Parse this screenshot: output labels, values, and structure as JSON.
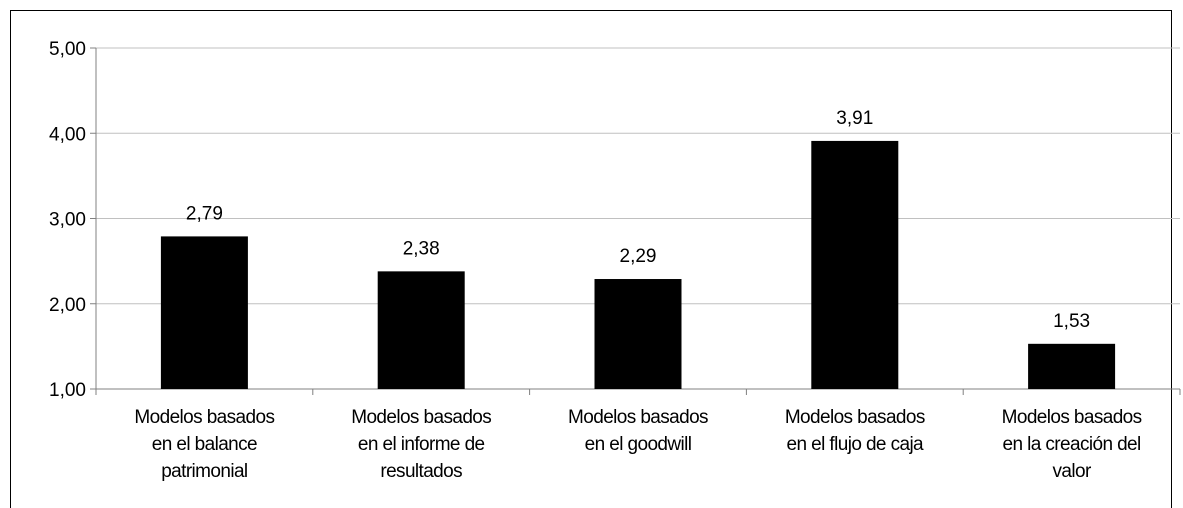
{
  "chart_data": {
    "type": "bar",
    "title": "",
    "xlabel": "",
    "ylabel": "",
    "ylim": [
      1,
      5
    ],
    "yticks": [
      1,
      2,
      3,
      4,
      5
    ],
    "ytick_labels": [
      "1,00",
      "2,00",
      "3,00",
      "4,00",
      "5,00"
    ],
    "grid": true,
    "legend": "none",
    "categories": [
      [
        "Modelos basados",
        "en el balance",
        "patrimonial"
      ],
      [
        "Modelos basados",
        "en el informe de",
        "resultados"
      ],
      [
        "Modelos basados",
        "en el goodwill"
      ],
      [
        "Modelos basados",
        "en el flujo de caja"
      ],
      [
        "Modelos basados",
        "en la creación  del",
        "valor"
      ]
    ],
    "values": [
      2.79,
      2.38,
      2.29,
      3.91,
      1.53
    ],
    "value_labels": [
      "2,79",
      "2,38",
      "2,29",
      "3,91",
      "1,53"
    ],
    "colors": {
      "bar": "#000000",
      "grid": "#c0c0c0",
      "axis": "#808080"
    }
  }
}
